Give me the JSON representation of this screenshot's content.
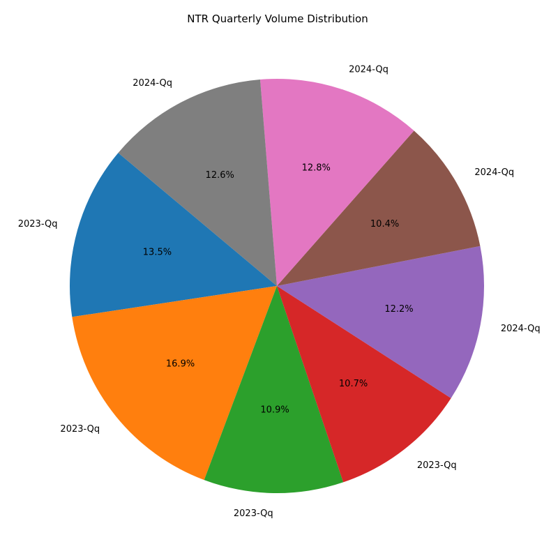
{
  "chart_data": {
    "type": "pie",
    "title": "NTR Quarterly Volume Distribution",
    "slices": [
      {
        "label": "2023-Qq",
        "value": 13.5,
        "percent_label": "13.5%",
        "color": "#1f77b4"
      },
      {
        "label": "2023-Qq",
        "value": 16.9,
        "percent_label": "16.9%",
        "color": "#ff7f0e"
      },
      {
        "label": "2023-Qq",
        "value": 10.9,
        "percent_label": "10.9%",
        "color": "#2ca02c"
      },
      {
        "label": "2023-Qq",
        "value": 10.7,
        "percent_label": "10.7%",
        "color": "#d62728"
      },
      {
        "label": "2024-Qq",
        "value": 12.2,
        "percent_label": "12.2%",
        "color": "#9467bd"
      },
      {
        "label": "2024-Qq",
        "value": 10.4,
        "percent_label": "10.4%",
        "color": "#8c564b"
      },
      {
        "label": "2024-Qq",
        "value": 12.8,
        "percent_label": "12.8%",
        "color": "#e377c2"
      },
      {
        "label": "2024-Qq",
        "value": 12.6,
        "percent_label": "12.6%",
        "color": "#7f7f7f"
      }
    ],
    "start_angle_deg": 140,
    "direction": "counterclockwise",
    "legend": "none"
  }
}
